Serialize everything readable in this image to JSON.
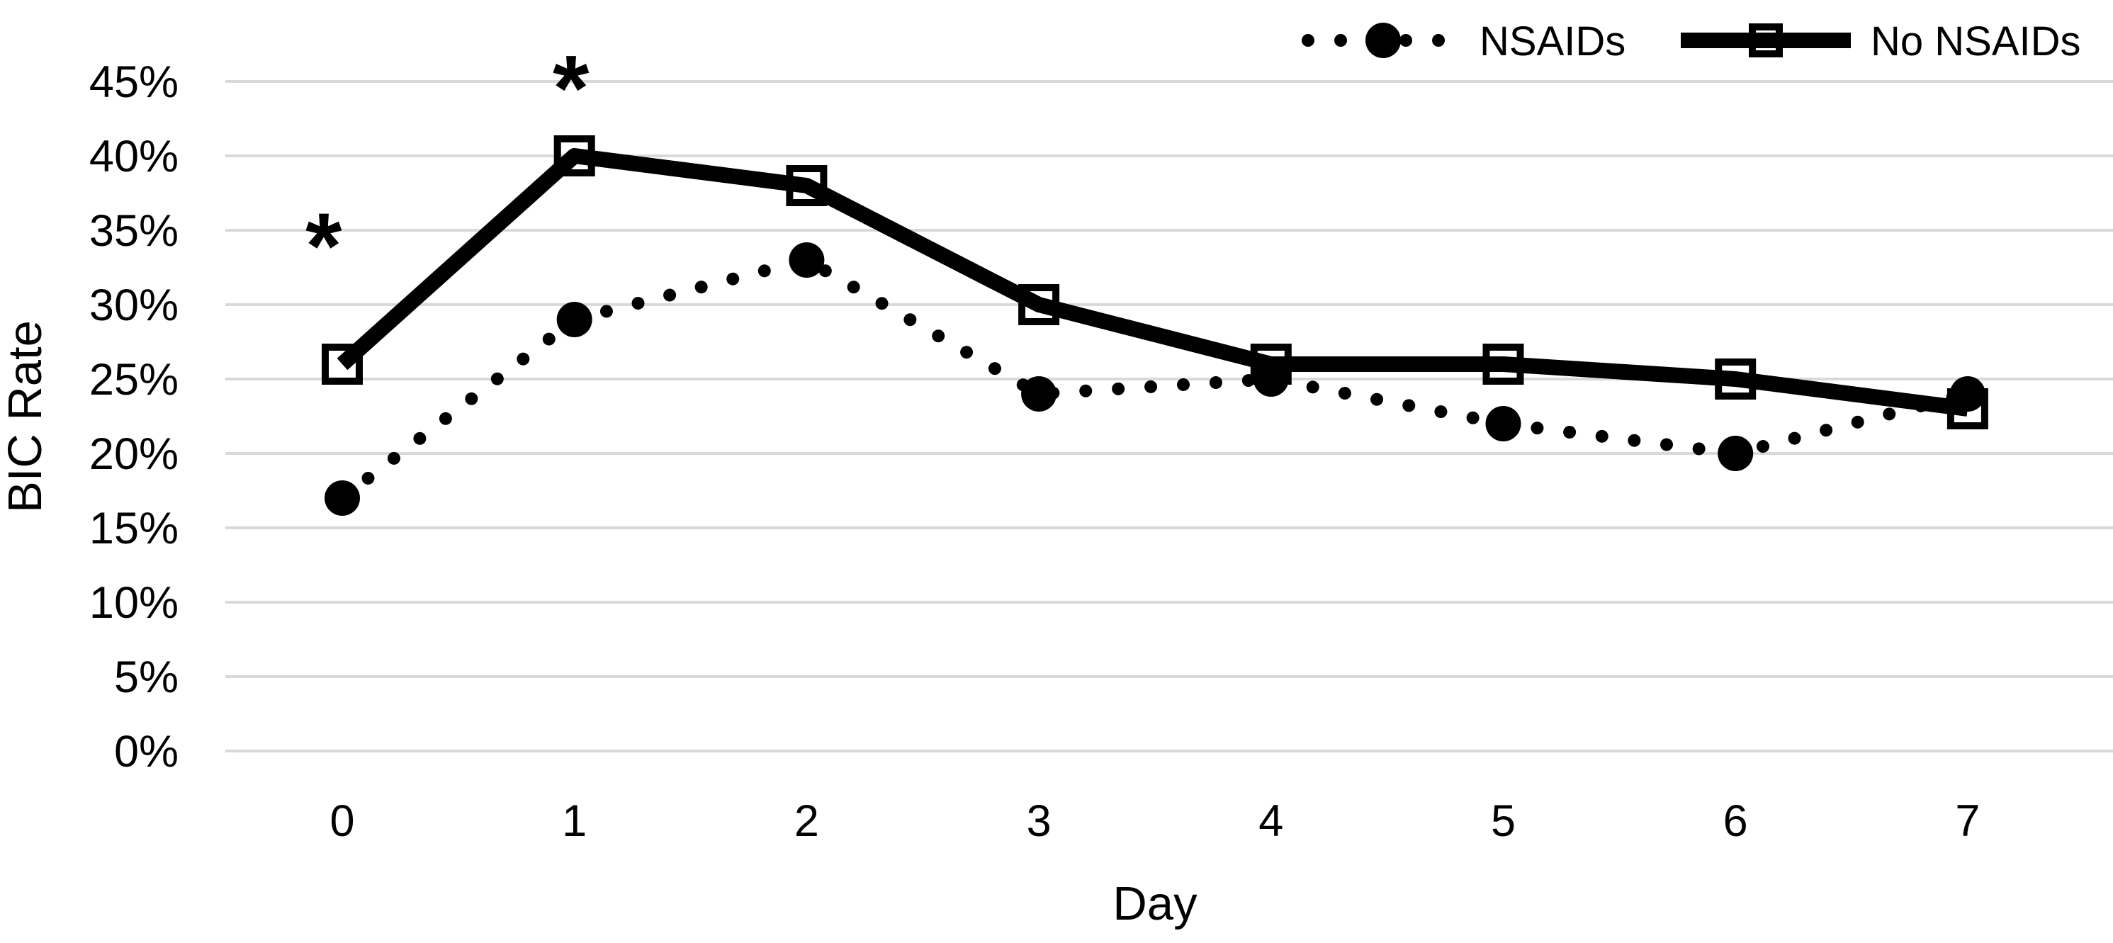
{
  "page": {
    "background_color": "#FFFFFF",
    "text_color": "#000000"
  },
  "chart_data": {
    "type": "line",
    "title": "",
    "xlabel": "Day",
    "ylabel": "BIC Rate",
    "x_categories": [
      0,
      1,
      2,
      3,
      4,
      5,
      6,
      7
    ],
    "x_tick_labels": [
      "0",
      "1",
      "2",
      "3",
      "4",
      "5",
      "6",
      "7"
    ],
    "series": [
      {
        "name": "No NSAIDs",
        "line_style": "solid",
        "marker": "open-square",
        "color": "#000000",
        "values": [
          26,
          40,
          38,
          30,
          26,
          26,
          25,
          23
        ]
      },
      {
        "name": "NSAIDs",
        "line_style": "dotted",
        "marker": "filled-circle",
        "color": "#000000",
        "values": [
          17,
          29,
          33,
          24,
          25,
          22,
          20,
          24
        ]
      }
    ],
    "ylim": [
      0,
      45
    ],
    "y_tick_step": 5,
    "y_tick_values": [
      45,
      40,
      35,
      30,
      25,
      20,
      15,
      10,
      5,
      0
    ],
    "y_tick_labels": [
      "45%",
      "40%",
      "35%",
      "30%",
      "25%",
      "20%",
      "15%",
      "10%",
      "5%",
      "0%"
    ],
    "grid": "horizontal",
    "gridline_color": "#D9D9D9",
    "legend_position": "top-right",
    "legend": [
      "NSAIDs",
      "No NSAIDs"
    ],
    "annotations": [
      {
        "text": "*",
        "x_day": -0.08,
        "y_value": 35.5
      },
      {
        "text": "*",
        "x_day": 0.985,
        "y_value": 46.1
      }
    ]
  }
}
